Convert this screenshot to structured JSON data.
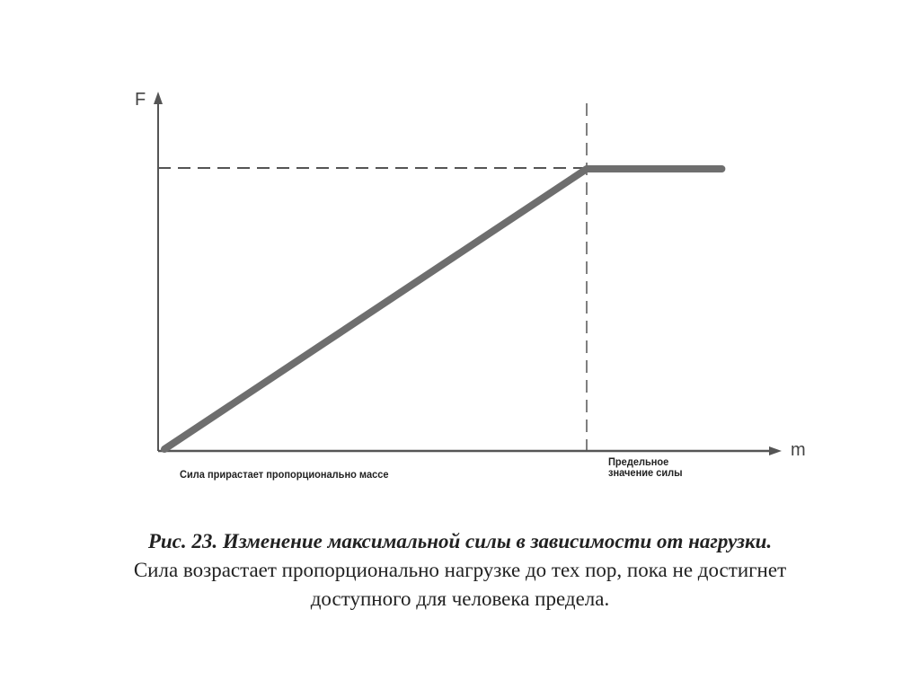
{
  "chart_data": {
    "type": "line",
    "xlabel": "m",
    "ylabel": "F",
    "grid": false,
    "series": [
      {
        "x": [
          0,
          1,
          1.32
        ],
        "y": [
          0,
          1,
          1
        ]
      }
    ],
    "reference_lines": {
      "horizontal_y": 1,
      "vertical_x": 1
    },
    "annotations": {
      "proportional": "Сила прирастает пропорционально массе",
      "limit_line1": "Предельное",
      "limit_line2": "значение силы"
    },
    "colors": {
      "series": "#6e6e6e",
      "axes": "#555555",
      "dashes": "#555555"
    }
  },
  "caption": {
    "title": "Рис. 23. Изменение максимальной силы в зависимости от нагрузки.",
    "line2": "Сила возрастает пропорционально нагрузке до тех пор, пока не достигнет",
    "line3": "доступного для человека предела."
  }
}
